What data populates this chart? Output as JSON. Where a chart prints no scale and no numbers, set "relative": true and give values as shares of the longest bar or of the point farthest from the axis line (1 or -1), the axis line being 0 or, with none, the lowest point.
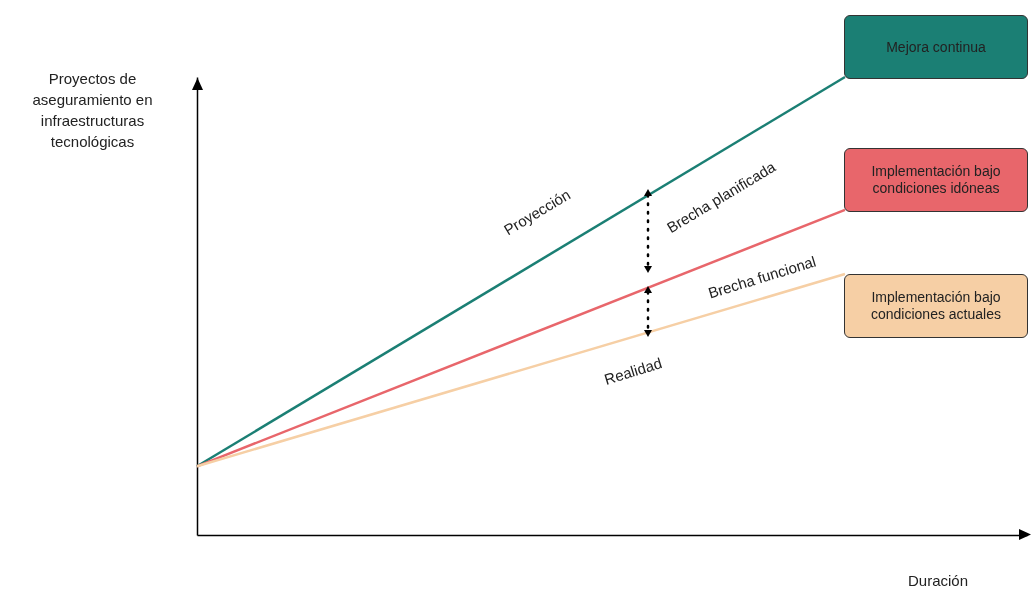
{
  "chart_data": {
    "type": "line",
    "relative": true,
    "categories": [
      null,
      null
    ],
    "xlabel": "Duración",
    "ylabel": "Proyectos de aseguramiento en infraestructuras tecnológicas",
    "series": [
      {
        "name": "Mejora continua",
        "color": "#1b7f74",
        "values": [
          0.15,
          1
        ]
      },
      {
        "name": "Implementación bajo condiciones idóneas",
        "color": "#e8666b",
        "values": [
          0.15,
          0.71
        ]
      },
      {
        "name": "Implementación bajo condiciones actuales",
        "color": "#f6cfa5",
        "values": [
          0.15,
          0.57
        ]
      }
    ],
    "annotations": [
      "Proyección",
      "Brecha planificada",
      "Brecha funcional",
      "Realidad"
    ]
  }
}
